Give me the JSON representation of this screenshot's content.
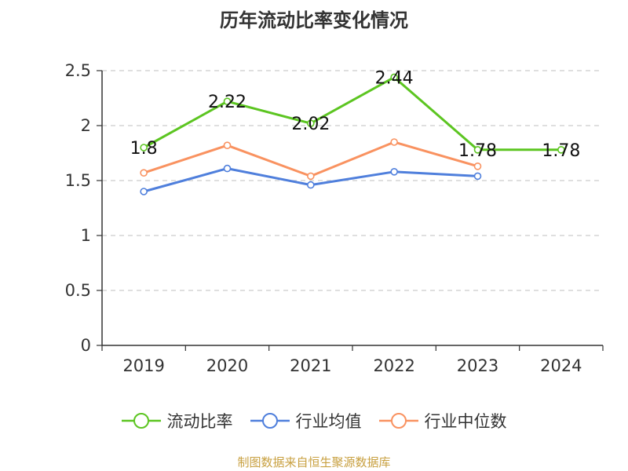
{
  "chart_data": {
    "type": "line",
    "title": "历年流动比率变化情况",
    "categories": [
      "2019",
      "2020",
      "2021",
      "2022",
      "2023",
      "2024"
    ],
    "ylim": [
      0,
      2.5
    ],
    "yticks": [
      "0",
      "0.5",
      "1",
      "1.5",
      "2",
      "2.5"
    ],
    "grid": true,
    "legend_position": "bottom",
    "series": [
      {
        "name": "流动比率",
        "color": "#5cc521",
        "values": [
          1.8,
          2.22,
          2.02,
          2.44,
          1.78,
          1.78
        ],
        "labels": [
          "1.8",
          "2.22",
          "2.02",
          "2.44",
          "1.78",
          "1.78"
        ]
      },
      {
        "name": "行业均值",
        "color": "#4f7fdc",
        "values": [
          1.4,
          1.61,
          1.46,
          1.58,
          1.54,
          null
        ]
      },
      {
        "name": "行业中位数",
        "color": "#f99260",
        "values": [
          1.57,
          1.82,
          1.54,
          1.85,
          1.63,
          null
        ]
      }
    ]
  },
  "source_note": "制图数据来自恒生聚源数据库"
}
